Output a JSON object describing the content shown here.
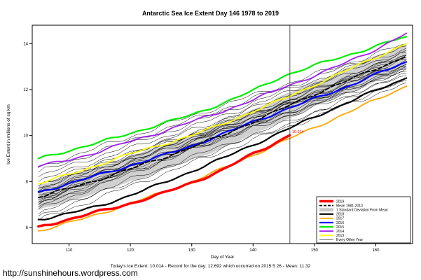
{
  "page": {
    "url_text": "http://sunshinehours.wordpress.com"
  },
  "footer": {
    "summary": "Today's Ice Extent: 10.014  - Record for the day: 12.692 which occurred on 2015 5 26  - Mean: 11.32"
  },
  "chart_data": {
    "type": "line",
    "title": "Antarctic Sea Ice Extent Day 146 1978 to 2019",
    "xlabel": "Day of Year",
    "ylabel": "Ice Extent in millions of sq km",
    "xlim": [
      104,
      166
    ],
    "ylim": [
      5.3,
      14.8
    ],
    "xticks": [
      110,
      120,
      130,
      140,
      150,
      160
    ],
    "yticks": [
      6,
      8,
      10,
      12,
      14
    ],
    "grid": false,
    "vline_x": 146,
    "annotation": {
      "text": "10.014",
      "x": 146,
      "y": 10.014,
      "color": "#FF0000"
    },
    "days": [
      105,
      110,
      115,
      120,
      125,
      130,
      135,
      140,
      145,
      150,
      155,
      160,
      165
    ],
    "std_band": {
      "around": "Mean 1981-2010",
      "halfwidth": 0.55,
      "color": "#C8C8C8"
    },
    "series": [
      {
        "name": "2013",
        "color": "#FFFF00",
        "width": 1.8,
        "values": [
          7.9,
          8.3,
          8.75,
          9.2,
          9.6,
          10.0,
          10.5,
          11.05,
          11.6,
          12.2,
          12.8,
          13.4,
          14.0
        ]
      },
      {
        "name": "2017",
        "color": "#FFA500",
        "width": 1.8,
        "values": [
          5.85,
          6.2,
          6.6,
          7.05,
          7.5,
          8.0,
          8.55,
          9.15,
          9.75,
          10.35,
          10.95,
          11.55,
          12.15
        ]
      },
      {
        "name": "2016",
        "color": "#0000FF",
        "width": 2.2,
        "values": [
          7.55,
          7.9,
          8.3,
          8.7,
          9.1,
          9.55,
          10.05,
          10.6,
          11.1,
          11.6,
          12.1,
          12.65,
          13.2
        ]
      },
      {
        "name": "2015",
        "color": "#00EE00",
        "width": 2.2,
        "values": [
          9.0,
          9.35,
          9.7,
          10.1,
          10.5,
          10.9,
          11.4,
          11.95,
          12.6,
          13.05,
          13.45,
          13.9,
          14.3
        ]
      },
      {
        "name": "2014",
        "color": "#A020F0",
        "width": 1.8,
        "values": [
          8.65,
          8.95,
          9.3,
          9.75,
          10.15,
          10.6,
          11.05,
          11.55,
          12.1,
          12.6,
          13.15,
          13.75,
          14.45
        ]
      },
      {
        "name": "Mean 1981-2010",
        "color": "#000000",
        "width": 1.8,
        "dash": "6,3",
        "values": [
          7.3,
          7.7,
          8.1,
          8.55,
          9.0,
          9.5,
          10.0,
          10.6,
          11.2,
          11.8,
          12.35,
          12.9,
          13.45
        ]
      },
      {
        "name": "2018",
        "color": "#000000",
        "width": 2.2,
        "values": [
          6.35,
          6.6,
          6.95,
          7.4,
          7.9,
          8.45,
          9.0,
          9.6,
          10.2,
          10.8,
          11.4,
          11.95,
          12.5
        ]
      },
      {
        "name": "2019",
        "color": "#FF0000",
        "width": 3.5,
        "x": [
          105,
          110,
          115,
          120,
          125,
          130,
          135,
          140,
          143,
          146
        ],
        "values": [
          6.05,
          6.35,
          6.7,
          7.05,
          7.45,
          7.95,
          8.5,
          9.2,
          9.6,
          10.014
        ]
      }
    ],
    "other_years": {
      "name": "Every Other Year",
      "color": "#000000",
      "width": 0.5,
      "endpoints": [
        [
          6.9,
          12.9
        ],
        [
          7.1,
          13.1
        ],
        [
          7.3,
          12.8
        ],
        [
          7.5,
          13.3
        ],
        [
          7.0,
          13.5
        ],
        [
          7.7,
          13.0
        ],
        [
          7.2,
          12.6
        ],
        [
          7.8,
          13.6
        ],
        [
          6.6,
          12.5
        ],
        [
          7.4,
          13.2
        ],
        [
          7.6,
          13.4
        ],
        [
          6.8,
          13.0
        ],
        [
          8.0,
          13.7
        ],
        [
          7.9,
          13.1
        ],
        [
          7.3,
          13.5
        ],
        [
          7.0,
          12.7
        ],
        [
          8.2,
          13.8
        ],
        [
          7.5,
          12.9
        ],
        [
          6.5,
          12.4
        ],
        [
          8.4,
          13.9
        ],
        [
          7.1,
          13.3
        ],
        [
          7.7,
          13.5
        ],
        [
          8.6,
          14.0
        ],
        [
          6.3,
          12.3
        ]
      ]
    },
    "legend": {
      "position": "bottom-right",
      "items": [
        {
          "label": "2019",
          "color": "#FF0000",
          "lw": 3.5,
          "style": "line"
        },
        {
          "label": "Mean 1981-2010",
          "color": "#000000",
          "lw": 1.8,
          "style": "dashed"
        },
        {
          "label": "1 Standard Deviation From Mean",
          "color": "#C8C8C8",
          "lw": 5,
          "style": "band"
        },
        {
          "label": "2018",
          "color": "#000000",
          "lw": 2.2,
          "style": "line"
        },
        {
          "label": "2017",
          "color": "#FFA500",
          "lw": 1.8,
          "style": "line"
        },
        {
          "label": "2016",
          "color": "#0000FF",
          "lw": 2.2,
          "style": "line"
        },
        {
          "label": "2015",
          "color": "#00EE00",
          "lw": 2.2,
          "style": "line"
        },
        {
          "label": "2014",
          "color": "#A020F0",
          "lw": 1.8,
          "style": "line"
        },
        {
          "label": "2013",
          "color": "#FFFF00",
          "lw": 1.8,
          "style": "line"
        },
        {
          "label": "Every Other Year",
          "color": "#000000",
          "lw": 0.5,
          "style": "line"
        }
      ]
    }
  }
}
